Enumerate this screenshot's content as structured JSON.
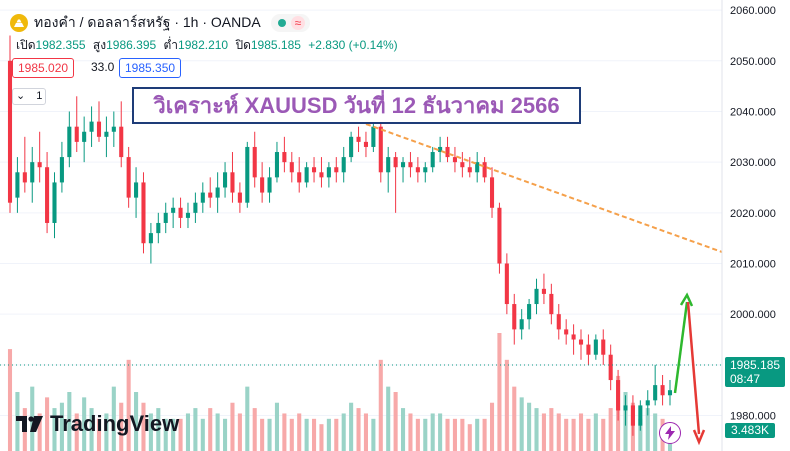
{
  "header": {
    "symbol_line": "ทองคำ / ดอลลาร์สหรัฐ · 1h · OANDA",
    "approx_badge": "≈"
  },
  "ohlc": {
    "open_label": "เปิด",
    "open": "1982.355",
    "high_label": "สูง",
    "high": "1986.395",
    "low_label": "ต่ำ",
    "low": "1982.210",
    "close_label": "ปิด",
    "close": "1985.185",
    "change": "+2.830 (+0.14%)"
  },
  "trade": {
    "sell": "1985.020",
    "spread": "33.0",
    "buy": "1985.350",
    "quantity": "1"
  },
  "title": "วิเคราะห์ XAUUSD วันที่ 12 ธันวาคม 2566",
  "watermark": "TradingView",
  "price_axis": {
    "labels": [
      "2060.000",
      "2050.000",
      "2040.000",
      "2030.000",
      "2020.000",
      "2010.000",
      "2000.000",
      "1990.000",
      "1980.000"
    ]
  },
  "last_price": {
    "price": "1985.185",
    "countdown": "08:47"
  },
  "volume_label": "3.483K",
  "colors": {
    "up": "#089981",
    "down": "#f23645",
    "vol_up": "#9ad3c7",
    "vol_down": "#f7a9a9",
    "trendline": "#f5a04a",
    "title_text": "#9b59b6",
    "title_border": "#1e3c78"
  },
  "chart_data": {
    "type": "candlestick",
    "price_range": [
      1973,
      2062
    ],
    "candles": [
      [
        2050,
        2055,
        2020,
        2022
      ],
      [
        2023,
        2031,
        2020,
        2028
      ],
      [
        2028,
        2035,
        2024,
        2026
      ],
      [
        2026,
        2033,
        2022,
        2030
      ],
      [
        2030,
        2036,
        2026,
        2029
      ],
      [
        2029,
        2032,
        2016,
        2018
      ],
      [
        2018,
        2028,
        2015,
        2026
      ],
      [
        2026,
        2034,
        2024,
        2031
      ],
      [
        2031,
        2040,
        2029,
        2037
      ],
      [
        2037,
        2043,
        2032,
        2034
      ],
      [
        2034,
        2039,
        2030,
        2036
      ],
      [
        2036,
        2041,
        2033,
        2038
      ],
      [
        2038,
        2042,
        2034,
        2035
      ],
      [
        2035,
        2039,
        2031,
        2036
      ],
      [
        2036,
        2040,
        2033,
        2037
      ],
      [
        2037,
        2042,
        2029,
        2031
      ],
      [
        2031,
        2033,
        2021,
        2023
      ],
      [
        2023,
        2029,
        2019,
        2026
      ],
      [
        2026,
        2028,
        2012,
        2014
      ],
      [
        2014,
        2018,
        2010,
        2016
      ],
      [
        2016,
        2020,
        2014,
        2018
      ],
      [
        2018,
        2022,
        2016,
        2020
      ],
      [
        2020,
        2023,
        2017,
        2021
      ],
      [
        2021,
        2023,
        2017,
        2019
      ],
      [
        2019,
        2022,
        2017,
        2020
      ],
      [
        2020,
        2024,
        2018,
        2022
      ],
      [
        2022,
        2026,
        2020,
        2024
      ],
      [
        2024,
        2027,
        2021,
        2023
      ],
      [
        2023,
        2028,
        2020,
        2025
      ],
      [
        2025,
        2030,
        2023,
        2028
      ],
      [
        2028,
        2032,
        2022,
        2024
      ],
      [
        2024,
        2026,
        2020,
        2022
      ],
      [
        2022,
        2034,
        2021,
        2033
      ],
      [
        2033,
        2036,
        2025,
        2027
      ],
      [
        2027,
        2030,
        2022,
        2024
      ],
      [
        2024,
        2029,
        2022,
        2027
      ],
      [
        2027,
        2034,
        2026,
        2032
      ],
      [
        2032,
        2035,
        2028,
        2030
      ],
      [
        2030,
        2032,
        2026,
        2028
      ],
      [
        2028,
        2031,
        2024,
        2026
      ],
      [
        2026,
        2030,
        2025,
        2029
      ],
      [
        2029,
        2031,
        2026,
        2028
      ],
      [
        2028,
        2031,
        2025,
        2027
      ],
      [
        2027,
        2030,
        2025,
        2029
      ],
      [
        2029,
        2031,
        2026,
        2028
      ],
      [
        2028,
        2033,
        2026,
        2031
      ],
      [
        2031,
        2036,
        2030,
        2035
      ],
      [
        2035,
        2037,
        2032,
        2034
      ],
      [
        2034,
        2036,
        2031,
        2033
      ],
      [
        2033,
        2039,
        2032,
        2037
      ],
      [
        2037,
        2038,
        2026,
        2028
      ],
      [
        2028,
        2033,
        2024,
        2031
      ],
      [
        2031,
        2032,
        2020,
        2029
      ],
      [
        2029,
        2031,
        2026,
        2030
      ],
      [
        2030,
        2032,
        2027,
        2029
      ],
      [
        2029,
        2031,
        2026,
        2028
      ],
      [
        2028,
        2030,
        2026,
        2029
      ],
      [
        2029,
        2033,
        2028,
        2032
      ],
      [
        2032,
        2035,
        2030,
        2033
      ],
      [
        2033,
        2035,
        2030,
        2031
      ],
      [
        2031,
        2033,
        2028,
        2030
      ],
      [
        2030,
        2032,
        2027,
        2029
      ],
      [
        2029,
        2031,
        2027,
        2028
      ],
      [
        2028,
        2032,
        2026,
        2030
      ],
      [
        2030,
        2031,
        2026,
        2027
      ],
      [
        2027,
        2029,
        2019,
        2021
      ],
      [
        2021,
        2022,
        2008,
        2010
      ],
      [
        2010,
        2012,
        2000,
        2002
      ],
      [
        2002,
        2004,
        1994,
        1997
      ],
      [
        1997,
        2001,
        1995,
        1999
      ],
      [
        1999,
        2003,
        1997,
        2002
      ],
      [
        2002,
        2007,
        2000,
        2005
      ],
      [
        2005,
        2008,
        2002,
        2004
      ],
      [
        2004,
        2006,
        1998,
        2000
      ],
      [
        2000,
        2002,
        1995,
        1997
      ],
      [
        1997,
        1999,
        1994,
        1996
      ],
      [
        1996,
        1998,
        1992,
        1995
      ],
      [
        1995,
        1997,
        1991,
        1994
      ],
      [
        1994,
        1996,
        1990,
        1992
      ],
      [
        1992,
        1996,
        1991,
        1995
      ],
      [
        1995,
        1997,
        1990,
        1992
      ],
      [
        1992,
        1994,
        1985,
        1987
      ],
      [
        1987,
        1989,
        1979,
        1981
      ],
      [
        1981,
        1984,
        1978,
        1982
      ],
      [
        1982,
        1984,
        1976,
        1978
      ],
      [
        1978,
        1983,
        1977,
        1982
      ],
      [
        1982,
        1985,
        1980,
        1983
      ],
      [
        1983,
        1990,
        1982,
        1986
      ],
      [
        1986,
        1988,
        1982,
        1984
      ],
      [
        1984,
        1987,
        1982,
        1985
      ]
    ],
    "volume": [
      95,
      55,
      40,
      60,
      35,
      50,
      40,
      45,
      55,
      35,
      50,
      40,
      30,
      35,
      60,
      45,
      85,
      55,
      45,
      35,
      40,
      30,
      30,
      30,
      35,
      40,
      30,
      40,
      35,
      30,
      45,
      35,
      60,
      40,
      30,
      30,
      45,
      35,
      30,
      35,
      30,
      30,
      25,
      30,
      30,
      35,
      45,
      40,
      35,
      30,
      85,
      60,
      55,
      40,
      35,
      30,
      30,
      35,
      35,
      30,
      30,
      30,
      25,
      30,
      30,
      45,
      110,
      85,
      60,
      50,
      45,
      40,
      35,
      40,
      35,
      30,
      30,
      35,
      30,
      35,
      30,
      40,
      70,
      55,
      45,
      30,
      40,
      35,
      30,
      15
    ],
    "annotations": [
      "dashed trendline from the local high at ~2037 sloping down to ~2009",
      "green up arrow toward ~2000",
      "red down arrow toward ~1972"
    ]
  }
}
